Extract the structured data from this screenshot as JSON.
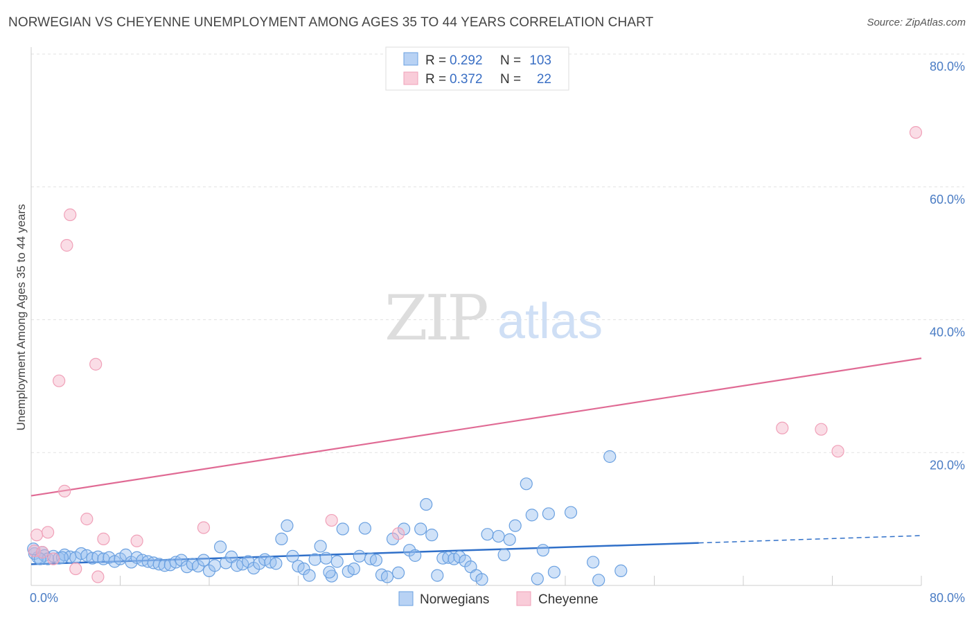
{
  "chart_data": {
    "type": "scatter",
    "title": "NORWEGIAN VS CHEYENNE UNEMPLOYMENT AMONG AGES 35 TO 44 YEARS CORRELATION CHART",
    "source": "Source: ZipAtlas.com",
    "ylabel": "Unemployment Among Ages 35 to 44 years",
    "xlim": [
      0,
      80
    ],
    "ylim": [
      0,
      80
    ],
    "x_tick_labels": [
      "0.0%",
      "80.0%"
    ],
    "y_ticks": [
      20,
      40,
      60,
      80
    ],
    "y_tick_labels": [
      "20.0%",
      "40.0%",
      "60.0%",
      "80.0%"
    ],
    "watermark": {
      "zip": "ZIP",
      "atlas": "atlas"
    },
    "colors": {
      "norwegians": "#6aa0e0",
      "cheyenne": "#f0a0b8",
      "norwegians_line": "#2f6fc8",
      "cheyenne_line": "#e06a94"
    },
    "legend": [
      {
        "r_label": "R =",
        "r_value": "0.292",
        "n_label": "N =",
        "n_value": "103"
      },
      {
        "r_label": "R =",
        "r_value": "0.372",
        "n_label": "N =",
        "n_value": "22"
      }
    ],
    "series": [
      {
        "name": "Norwegians",
        "trend": {
          "x0": 0,
          "y0": 3.2,
          "x1": 60,
          "y1": 6.4,
          "x_dash_end": 80,
          "y_dash_end": 7.5
        },
        "points": [
          [
            0.3,
            4.8
          ],
          [
            0.6,
            4.2
          ],
          [
            1.0,
            5.0
          ],
          [
            1.2,
            4.5
          ],
          [
            1.5,
            4.0
          ],
          [
            2.0,
            4.4
          ],
          [
            2.5,
            4.1
          ],
          [
            3.0,
            4.6
          ],
          [
            3.5,
            4.3
          ],
          [
            4.0,
            4.2
          ],
          [
            4.5,
            4.8
          ],
          [
            5.0,
            4.5
          ],
          [
            5.5,
            4.1
          ],
          [
            6.0,
            4.3
          ],
          [
            6.5,
            4.0
          ],
          [
            7.0,
            4.2
          ],
          [
            7.5,
            3.6
          ],
          [
            8.0,
            4.0
          ],
          [
            8.5,
            4.6
          ],
          [
            9.0,
            3.5
          ],
          [
            9.5,
            4.2
          ],
          [
            10.0,
            3.8
          ],
          [
            10.5,
            3.6
          ],
          [
            11.0,
            3.4
          ],
          [
            11.5,
            3.2
          ],
          [
            12.0,
            3.0
          ],
          [
            12.5,
            3.1
          ],
          [
            13.0,
            3.5
          ],
          [
            13.5,
            3.8
          ],
          [
            14.0,
            2.8
          ],
          [
            14.5,
            3.2
          ],
          [
            15.0,
            2.9
          ],
          [
            15.5,
            3.8
          ],
          [
            16.0,
            2.2
          ],
          [
            16.5,
            3.0
          ],
          [
            17.0,
            5.8
          ],
          [
            17.5,
            3.4
          ],
          [
            18.0,
            4.3
          ],
          [
            18.5,
            3.0
          ],
          [
            19.0,
            3.2
          ],
          [
            19.5,
            3.6
          ],
          [
            20.0,
            2.6
          ],
          [
            20.5,
            3.3
          ],
          [
            21.0,
            3.9
          ],
          [
            21.5,
            3.5
          ],
          [
            22.0,
            3.3
          ],
          [
            22.5,
            7.0
          ],
          [
            23.0,
            9.0
          ],
          [
            23.5,
            4.4
          ],
          [
            24.0,
            2.9
          ],
          [
            24.5,
            2.5
          ],
          [
            25.0,
            1.5
          ],
          [
            25.5,
            3.9
          ],
          [
            26.0,
            5.9
          ],
          [
            26.5,
            4.1
          ],
          [
            27.0,
            1.4
          ],
          [
            27.5,
            3.6
          ],
          [
            28.0,
            8.5
          ],
          [
            28.5,
            2.1
          ],
          [
            29.0,
            2.5
          ],
          [
            29.5,
            4.4
          ],
          [
            30.0,
            8.6
          ],
          [
            30.5,
            4.0
          ],
          [
            31.0,
            3.8
          ],
          [
            31.5,
            1.6
          ],
          [
            32.0,
            1.3
          ],
          [
            32.5,
            7.0
          ],
          [
            33.0,
            1.9
          ],
          [
            33.5,
            8.5
          ],
          [
            34.0,
            5.3
          ],
          [
            34.5,
            4.5
          ],
          [
            35.0,
            8.5
          ],
          [
            35.5,
            12.2
          ],
          [
            36.0,
            7.6
          ],
          [
            36.5,
            1.5
          ],
          [
            37.0,
            4.1
          ],
          [
            37.5,
            4.2
          ],
          [
            38.0,
            4.0
          ],
          [
            38.5,
            4.3
          ],
          [
            39.0,
            3.7
          ],
          [
            39.5,
            2.8
          ],
          [
            40.0,
            1.5
          ],
          [
            40.5,
            0.9
          ],
          [
            41.0,
            7.7
          ],
          [
            42.0,
            7.4
          ],
          [
            42.5,
            4.6
          ],
          [
            43.0,
            6.9
          ],
          [
            43.5,
            9.0
          ],
          [
            44.5,
            15.3
          ],
          [
            45.0,
            10.6
          ],
          [
            45.5,
            1.0
          ],
          [
            46.0,
            5.3
          ],
          [
            46.5,
            10.8
          ],
          [
            47.0,
            2.0
          ],
          [
            48.5,
            11.0
          ],
          [
            50.5,
            3.5
          ],
          [
            51.0,
            0.8
          ],
          [
            52.0,
            19.4
          ],
          [
            53.0,
            2.2
          ],
          [
            0.2,
            5.5
          ],
          [
            0.8,
            4.0
          ],
          [
            2.8,
            4.2
          ],
          [
            26.8,
            2.0
          ]
        ]
      },
      {
        "name": "Cheyenne",
        "trend": {
          "x0": 0,
          "y0": 13.5,
          "x1": 80,
          "y1": 34.2
        },
        "points": [
          [
            0.3,
            5.2
          ],
          [
            0.5,
            7.6
          ],
          [
            1.5,
            8.0
          ],
          [
            2.0,
            4.0
          ],
          [
            2.5,
            30.8
          ],
          [
            3.0,
            14.2
          ],
          [
            3.2,
            51.2
          ],
          [
            3.5,
            55.8
          ],
          [
            4.0,
            2.5
          ],
          [
            5.0,
            10.0
          ],
          [
            5.8,
            33.3
          ],
          [
            6.0,
            1.3
          ],
          [
            6.5,
            7.0
          ],
          [
            9.5,
            6.7
          ],
          [
            15.5,
            8.7
          ],
          [
            27.0,
            9.8
          ],
          [
            33.0,
            7.8
          ],
          [
            67.5,
            23.7
          ],
          [
            71.0,
            23.5
          ],
          [
            72.5,
            20.2
          ],
          [
            79.5,
            68.2
          ],
          [
            1.0,
            5.0
          ]
        ]
      }
    ],
    "bottom_legend": [
      "Norwegians",
      "Cheyenne"
    ]
  }
}
